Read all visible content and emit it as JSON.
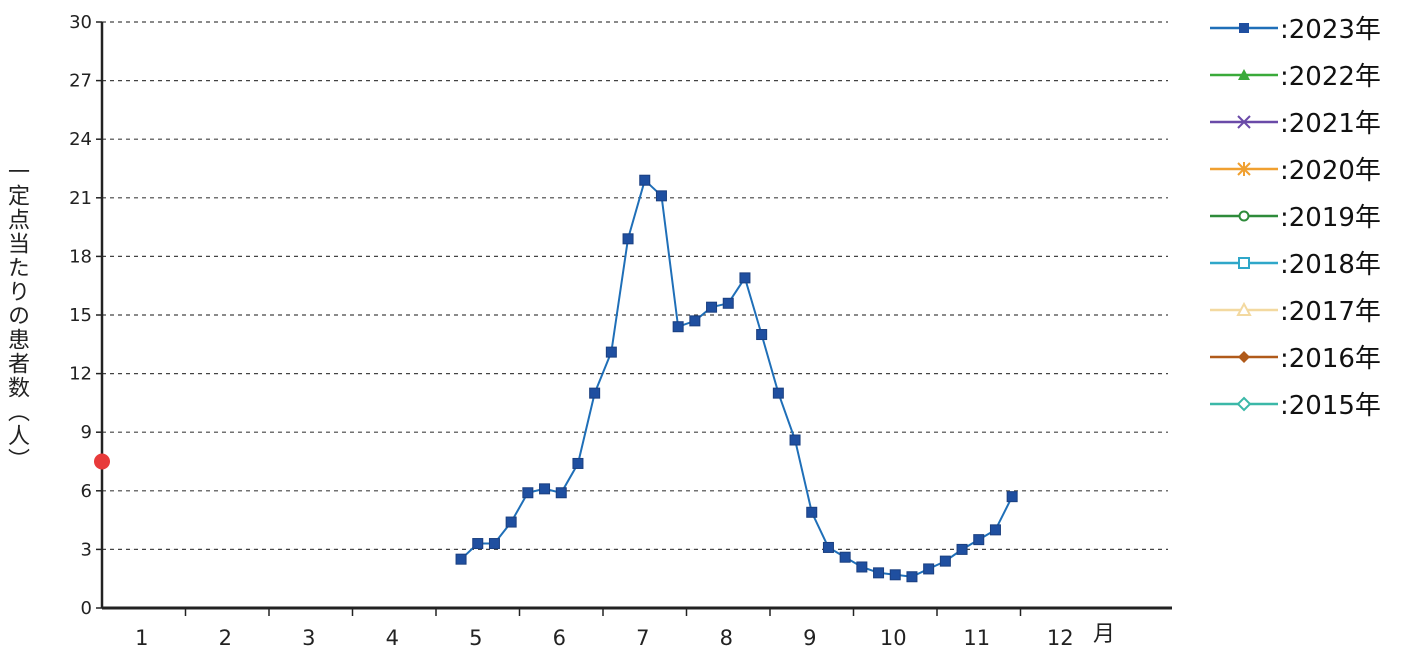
{
  "chart_data": {
    "type": "line",
    "ylabel": "一定点当たりの患者数（人）",
    "x_unit": "月",
    "ylim": [
      0,
      30
    ],
    "y_ticks": [
      0,
      3,
      6,
      9,
      12,
      15,
      18,
      21,
      24,
      27,
      30
    ],
    "months": [
      "1",
      "2",
      "3",
      "4",
      "5",
      "6",
      "7",
      "8",
      "9",
      "10",
      "11",
      "12"
    ],
    "grid": true,
    "legend_position": "right",
    "marker_value": 7.5,
    "marker_color": "#e83a3a",
    "series": [
      {
        "name": ":2023年",
        "color": "#1f6fb8",
        "marker": "square",
        "values": [
          {
            "x": 4.8,
            "y": 2.5
          },
          {
            "x": 5.0,
            "y": 3.3
          },
          {
            "x": 5.2,
            "y": 3.3
          },
          {
            "x": 5.4,
            "y": 4.4
          },
          {
            "x": 5.6,
            "y": 5.9
          },
          {
            "x": 5.8,
            "y": 6.1
          },
          {
            "x": 6.0,
            "y": 5.9
          },
          {
            "x": 6.2,
            "y": 7.4
          },
          {
            "x": 6.4,
            "y": 11.0
          },
          {
            "x": 6.6,
            "y": 13.1
          },
          {
            "x": 6.8,
            "y": 18.9
          },
          {
            "x": 7.0,
            "y": 21.9
          },
          {
            "x": 7.2,
            "y": 21.1
          },
          {
            "x": 7.4,
            "y": 14.4
          },
          {
            "x": 7.6,
            "y": 14.7
          },
          {
            "x": 7.8,
            "y": 15.4
          },
          {
            "x": 8.0,
            "y": 15.6
          },
          {
            "x": 8.2,
            "y": 16.9
          },
          {
            "x": 8.4,
            "y": 14.0
          },
          {
            "x": 8.6,
            "y": 11.0
          },
          {
            "x": 8.8,
            "y": 8.6
          },
          {
            "x": 9.0,
            "y": 4.9
          },
          {
            "x": 9.2,
            "y": 3.1
          },
          {
            "x": 9.4,
            "y": 2.6
          },
          {
            "x": 9.6,
            "y": 2.1
          },
          {
            "x": 9.8,
            "y": 1.8
          },
          {
            "x": 10.0,
            "y": 1.7
          },
          {
            "x": 10.2,
            "y": 1.6
          },
          {
            "x": 10.4,
            "y": 2.0
          },
          {
            "x": 10.6,
            "y": 2.4
          },
          {
            "x": 10.8,
            "y": 3.0
          },
          {
            "x": 11.0,
            "y": 3.5
          },
          {
            "x": 11.2,
            "y": 4.0
          },
          {
            "x": 11.4,
            "y": 5.7
          }
        ]
      },
      {
        "name": ":2022年",
        "color": "#3aaa3a",
        "marker": "triangle",
        "values": []
      },
      {
        "name": ":2021年",
        "color": "#6a4aa8",
        "marker": "cross",
        "values": []
      },
      {
        "name": ":2020年",
        "color": "#f0a030",
        "marker": "asterisk",
        "values": []
      },
      {
        "name": ":2019年",
        "color": "#2e8b3a",
        "marker": "circle",
        "values": []
      },
      {
        "name": ":2018年",
        "color": "#2fa7c9",
        "marker": "square-open",
        "values": []
      },
      {
        "name": ":2017年",
        "color": "#f3d9a0",
        "marker": "triangle-open",
        "values": []
      },
      {
        "name": ":2016年",
        "color": "#b05a1a",
        "marker": "diamond",
        "values": []
      },
      {
        "name": ":2015年",
        "color": "#3bb8a8",
        "marker": "diamond-open",
        "values": []
      }
    ]
  }
}
